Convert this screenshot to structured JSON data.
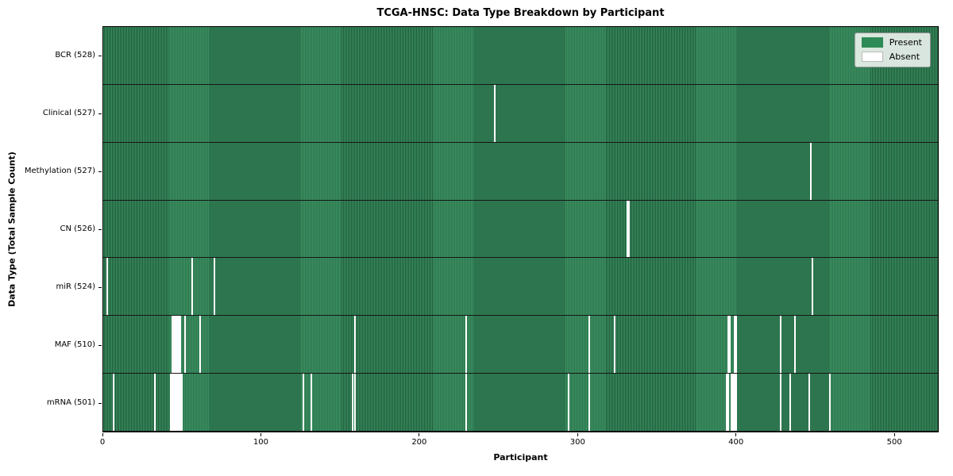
{
  "chart_data": {
    "type": "heatmap",
    "title": "TCGA-HNSC: Data Type Breakdown by Participant",
    "xlabel": "Participant",
    "ylabel": "Data Type (Total Sample Count)",
    "x_ticks": [
      0,
      100,
      200,
      300,
      400,
      500
    ],
    "x_range": [
      0,
      528
    ],
    "n_participants": 528,
    "grid": "row separators only",
    "legend_position": "upper right",
    "legend": [
      {
        "label": "Present",
        "color": "#2e8b57"
      },
      {
        "label": "Absent",
        "color": "#ffffff"
      }
    ],
    "rows": [
      {
        "data_type": "BCR",
        "label": "BCR (528)",
        "present_count": 528,
        "absent_participant_indices": []
      },
      {
        "data_type": "Clinical",
        "label": "Clinical (527)",
        "present_count": 527,
        "absent_participant_indices": [
          247
        ]
      },
      {
        "data_type": "Methylation",
        "label": "Methylation (527)",
        "present_count": 527,
        "absent_participant_indices": [
          447
        ]
      },
      {
        "data_type": "CN",
        "label": "CN (526)",
        "present_count": 526,
        "absent_participant_indices": [
          331,
          332
        ]
      },
      {
        "data_type": "miR",
        "label": "miR (524)",
        "present_count": 524,
        "absent_participant_indices": [
          2,
          56,
          70,
          448
        ]
      },
      {
        "data_type": "MAF",
        "label": "MAF (510)",
        "present_count": 510,
        "absent_participant_indices": [
          43,
          44,
          45,
          46,
          47,
          48,
          51,
          61,
          159,
          229,
          307,
          323,
          395,
          396,
          399,
          400,
          428,
          437
        ]
      },
      {
        "data_type": "mRNA",
        "label": "mRNA (501)",
        "present_count": 501,
        "absent_participant_indices": [
          6,
          32,
          42,
          43,
          44,
          45,
          46,
          47,
          48,
          49,
          126,
          131,
          157,
          159,
          229,
          294,
          307,
          394,
          395,
          397,
          398,
          399,
          400,
          428,
          434,
          446,
          459
        ]
      }
    ],
    "colors": {
      "present_stripe_light": "#3c9162",
      "present_stripe_dark": "#1e5939",
      "present_fill": "#2e8b57",
      "absent_fill": "#ffffff",
      "row_separator": "#161616"
    }
  }
}
